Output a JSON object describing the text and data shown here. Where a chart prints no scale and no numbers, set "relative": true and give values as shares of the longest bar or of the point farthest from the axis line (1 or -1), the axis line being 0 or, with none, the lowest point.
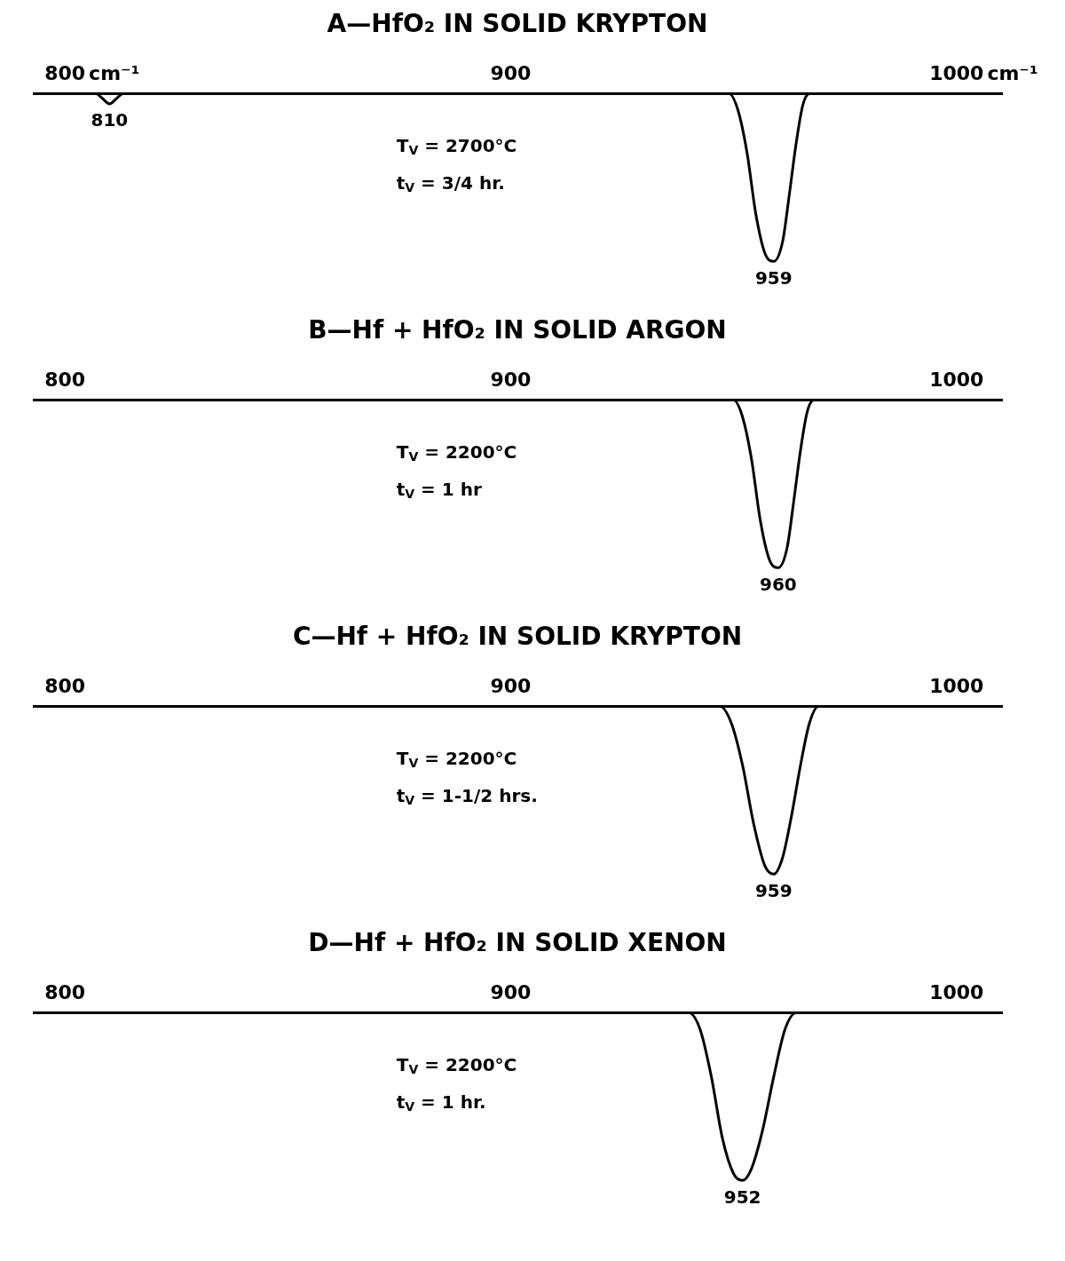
{
  "chart_data": [
    {
      "type": "line",
      "title": "A—HfO₂ IN SOLID KRYPTON",
      "relative": true,
      "xlim": [
        793,
        1010
      ],
      "xticks": [
        800,
        900,
        1000
      ],
      "xlabel": "cm⁻¹",
      "tick_labels": "x",
      "grid": false,
      "legend": false,
      "marker": "none",
      "line_style": "solid",
      "color": "#000000",
      "x": [
        793,
        807,
        808.5,
        810,
        811.5,
        813,
        949,
        951,
        953,
        955,
        957,
        959,
        961,
        962.5,
        964,
        965.5,
        967,
        1010
      ],
      "values": [
        0,
        0,
        -0.03,
        -0.06,
        -0.03,
        0,
        0,
        -0.1,
        -0.35,
        -0.72,
        -0.95,
        -1,
        -0.88,
        -0.6,
        -0.3,
        -0.07,
        0,
        0
      ],
      "annotations": [
        {
          "text": "810",
          "x": 810,
          "y": -0.06
        },
        {
          "text": "959",
          "x": 959,
          "y": -1
        },
        "T$_{V}$ = 2700°C",
        "t$_{V}$ = 3/4 hr."
      ]
    },
    {
      "type": "line",
      "title": "B—Hf + HfO₂ IN SOLID ARGON",
      "relative": true,
      "xlim": [
        793,
        1010
      ],
      "xticks": [
        800,
        900,
        1000
      ],
      "tick_labels": "x",
      "grid": false,
      "legend": false,
      "marker": "none",
      "line_style": "solid",
      "color": "#000000",
      "x": [
        793,
        950,
        952,
        954,
        956,
        958,
        960,
        962,
        963.5,
        965,
        966.5,
        968,
        1010
      ],
      "values": [
        0,
        0,
        -0.1,
        -0.35,
        -0.72,
        -0.95,
        -1,
        -0.88,
        -0.6,
        -0.3,
        -0.07,
        0,
        0
      ],
      "annotations": [
        {
          "text": "960",
          "x": 960,
          "y": -1
        },
        "T$_{V}$ = 2200°C",
        "t$_{V}$ = 1 hr"
      ]
    },
    {
      "type": "line",
      "title": "C—Hf + HfO₂ IN SOLID KRYPTON",
      "relative": true,
      "xlim": [
        793,
        1010
      ],
      "xticks": [
        800,
        900,
        1000
      ],
      "tick_labels": "x",
      "grid": false,
      "legend": false,
      "marker": "none",
      "line_style": "solid",
      "color": "#000000",
      "x": [
        793,
        947,
        949.5,
        952,
        954.5,
        957,
        959,
        961,
        963,
        965,
        967,
        969,
        1010
      ],
      "values": [
        0,
        0,
        -0.1,
        -0.35,
        -0.7,
        -0.95,
        -1,
        -0.9,
        -0.65,
        -0.35,
        -0.1,
        0,
        0
      ],
      "annotations": [
        {
          "text": "959",
          "x": 959,
          "y": -1
        },
        "T$_{V}$ = 2200°C",
        "t$_{V}$ = 1-1/2 hrs."
      ]
    },
    {
      "type": "line",
      "title": "D—Hf + HfO₂ IN SOLID XENON",
      "relative": true,
      "xlim": [
        793,
        1010
      ],
      "xticks": [
        800,
        900,
        1000
      ],
      "tick_labels": "x",
      "grid": false,
      "legend": false,
      "marker": "none",
      "line_style": "solid",
      "color": "#000000",
      "x": [
        793,
        940,
        942.5,
        945,
        947.5,
        950,
        952,
        954,
        956.5,
        959,
        961.5,
        964,
        1010
      ],
      "values": [
        0,
        0,
        -0.1,
        -0.38,
        -0.75,
        -0.96,
        -1,
        -0.93,
        -0.7,
        -0.38,
        -0.1,
        0,
        0
      ],
      "annotations": [
        {
          "text": "952",
          "x": 952,
          "y": -1
        },
        "T$_{V}$ = 2200°C",
        "t$_{V}$ = 1 hr."
      ]
    }
  ]
}
